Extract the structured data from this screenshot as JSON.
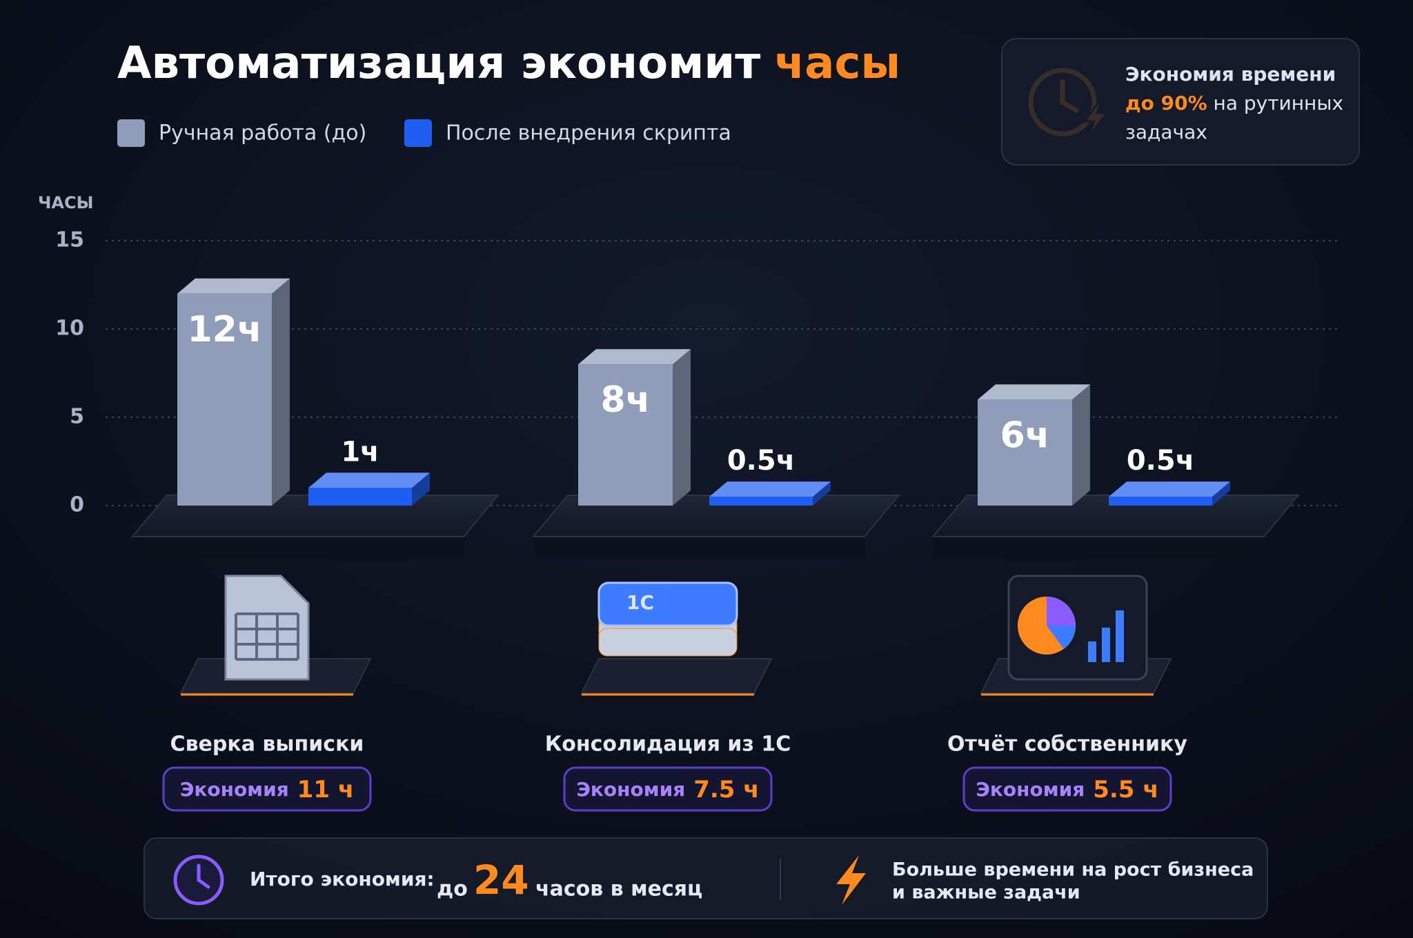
{
  "chart_data": {
    "type": "bar",
    "title": "Автоматизация экономит",
    "title_highlight": "часы",
    "y_label": "ЧАСЫ",
    "categories": [
      "Сверка выписки",
      "Консолидация из 1С",
      "Отчёт собственнику"
    ],
    "series": [
      {
        "name": "Ручная работа (до)",
        "color": "#8f9dbb",
        "values": [
          12,
          8,
          6
        ],
        "value_labels": [
          "12ч",
          "8ч",
          "6ч"
        ]
      },
      {
        "name": "После внедрения скрипта",
        "color": "#1f5ef2",
        "values": [
          1,
          0.5,
          0.5
        ],
        "value_labels": [
          "1ч",
          "0.5ч",
          "0.5ч"
        ]
      }
    ],
    "ylim": [
      0,
      15
    ],
    "yticks": [
      0,
      5,
      10,
      15
    ],
    "grid": true,
    "savings": {
      "label": "Экономия",
      "values": [
        11,
        7.5,
        5.5
      ],
      "value_labels": [
        "11 ч",
        "7.5 ч",
        "5.5 ч"
      ]
    },
    "icon_badge": "1C"
  },
  "callout": {
    "title": "Экономия времени",
    "highlight": "до 90%",
    "text": "на рутинных задачах"
  },
  "footer": {
    "label": "Итого экономия:",
    "prefix": "до",
    "value": 24,
    "suffix": "часов в месяц",
    "note": [
      "Больше времени на рост бизнеса",
      "и важные задачи"
    ]
  }
}
